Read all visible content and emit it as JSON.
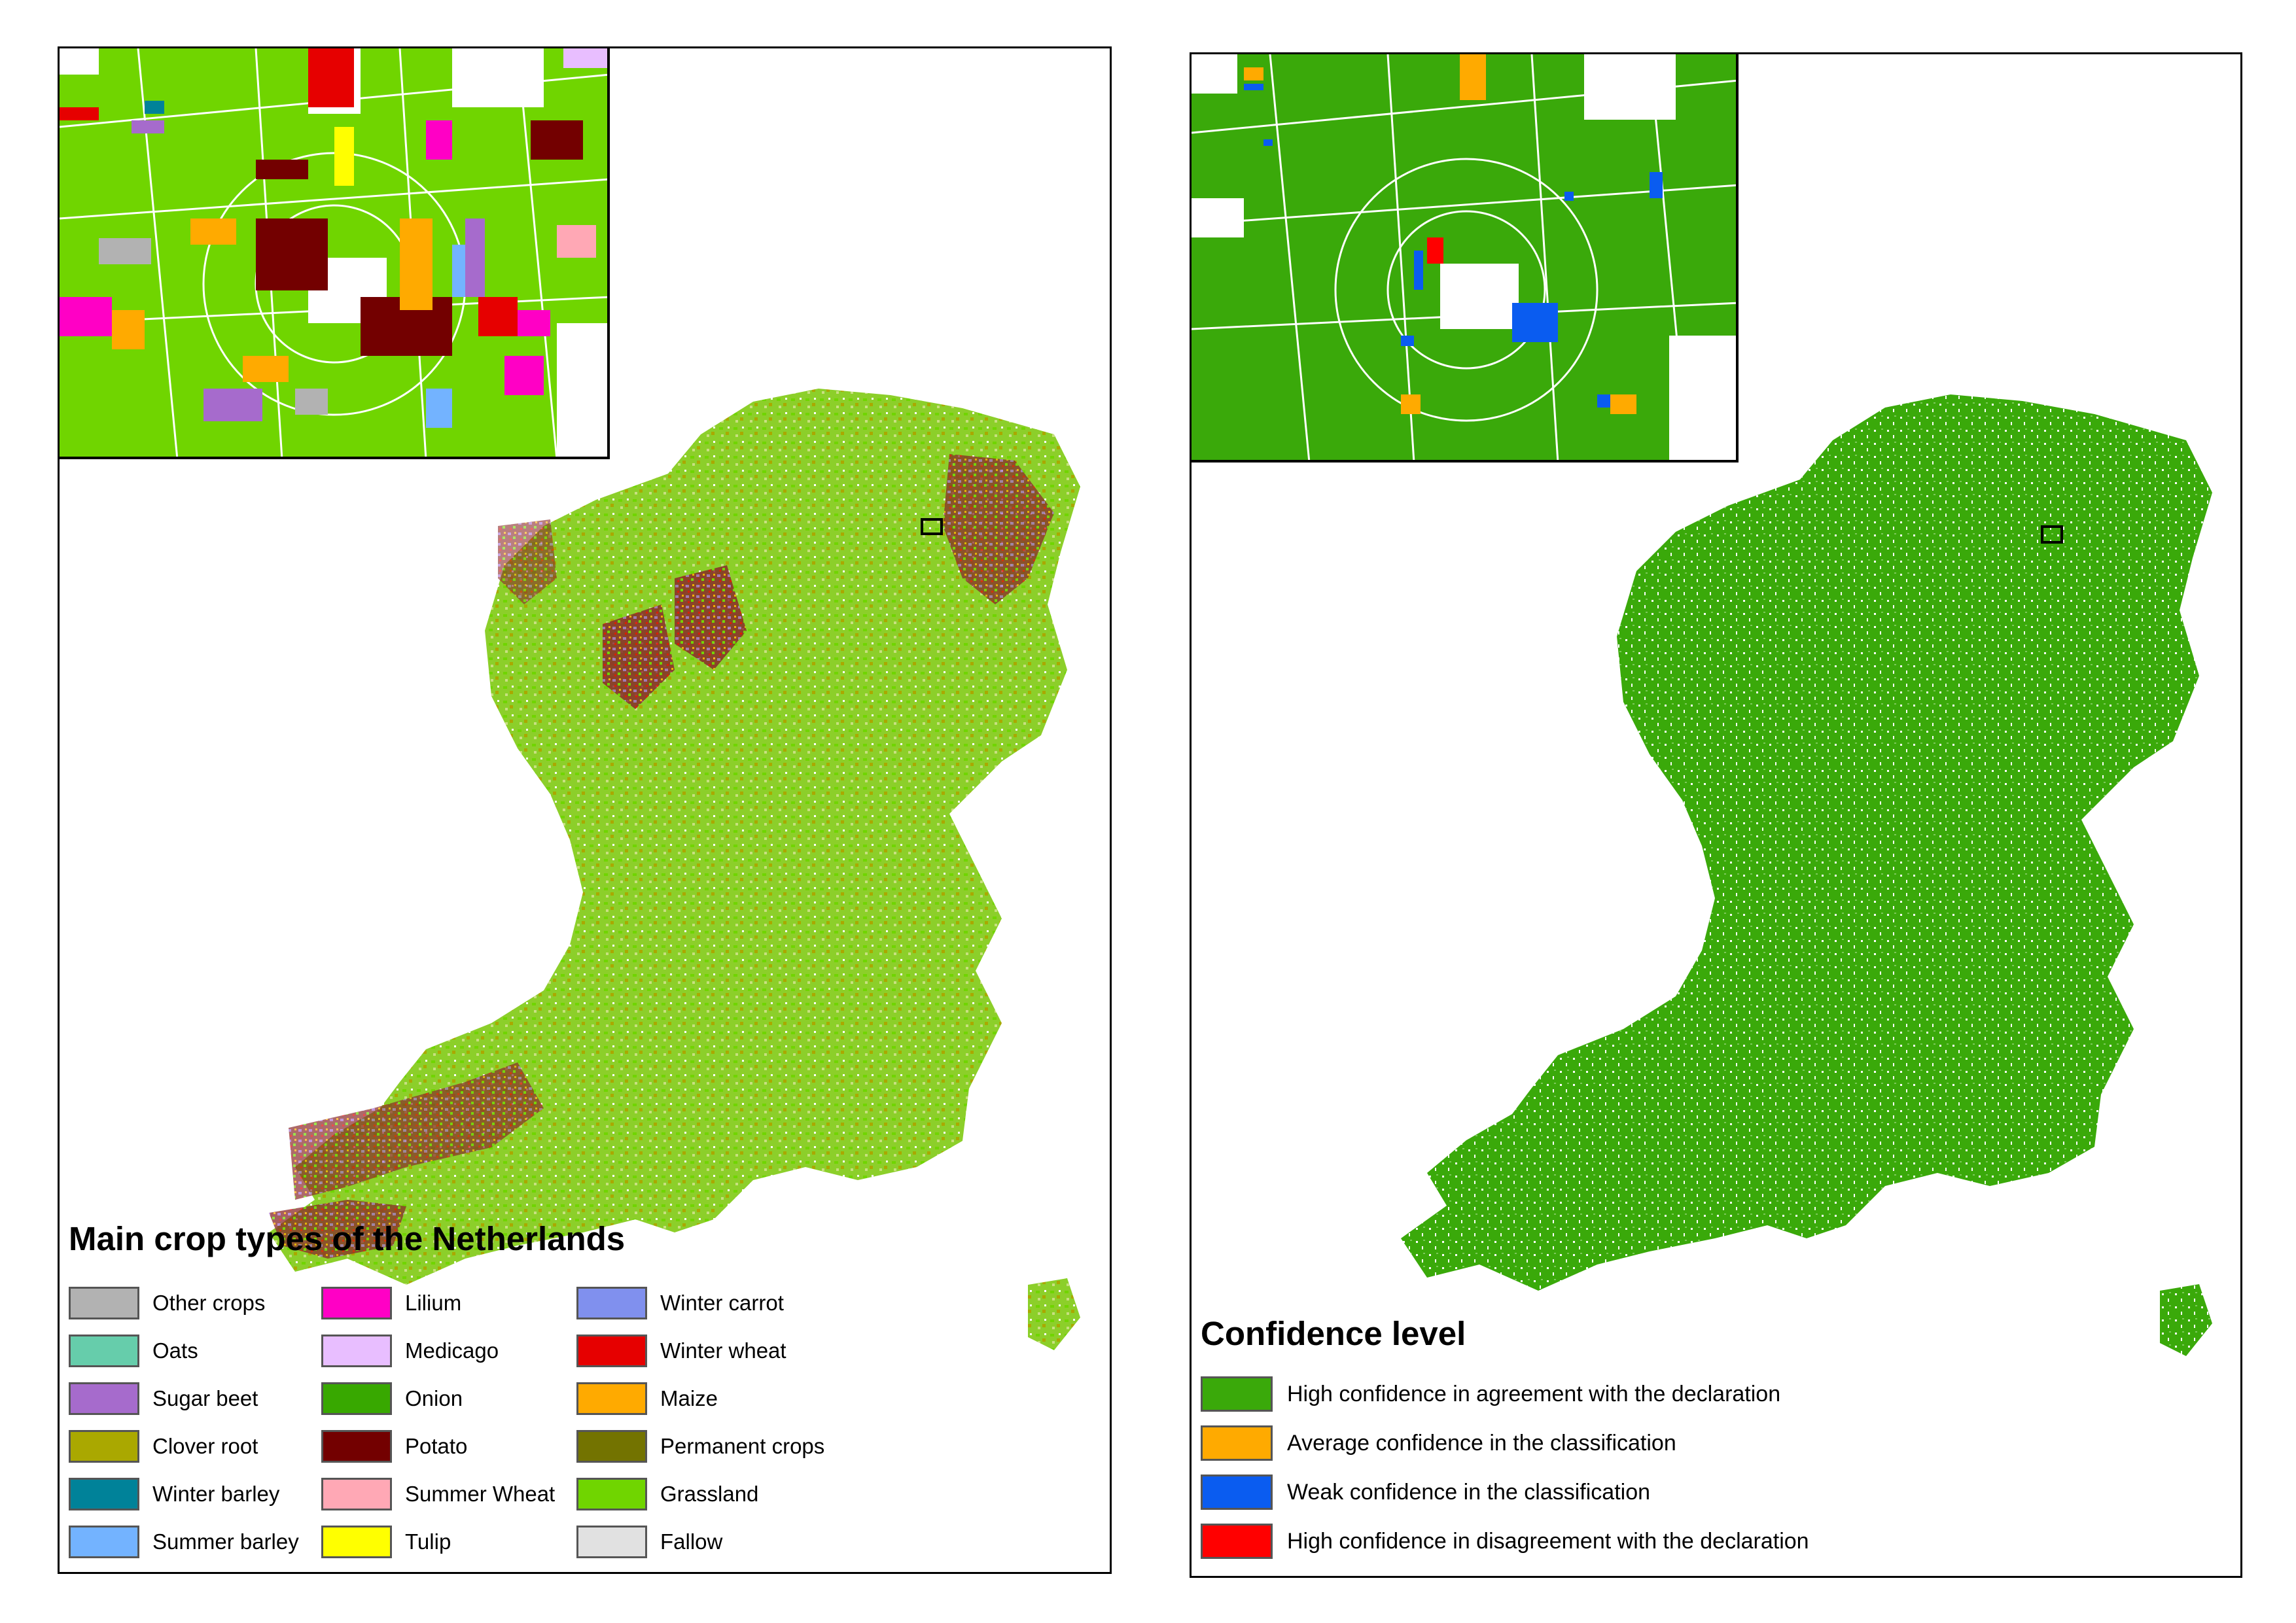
{
  "left_panel": {
    "legend_title": "Main crop types of the Netherlands",
    "legend_items": [
      {
        "label": "Other crops",
        "color": "#b2b2b2"
      },
      {
        "label": "Oats",
        "color": "#66cdab"
      },
      {
        "label": "Sugar beet",
        "color": "#a66bcc"
      },
      {
        "label": "Clover root",
        "color": "#aaa800"
      },
      {
        "label": "Winter barley",
        "color": "#008299"
      },
      {
        "label": "Summer barley",
        "color": "#73b3ff"
      },
      {
        "label": "Lilium",
        "color": "#ff00c5"
      },
      {
        "label": "Medicago",
        "color": "#e8beff"
      },
      {
        "label": "Onion",
        "color": "#38a800"
      },
      {
        "label": "Potato",
        "color": "#730000"
      },
      {
        "label": "Summer Wheat",
        "color": "#ffa8b5"
      },
      {
        "label": "Tulip",
        "color": "#ffff00"
      },
      {
        "label": "Winter carrot",
        "color": "#8090ee"
      },
      {
        "label": "Winter wheat",
        "color": "#e60000"
      },
      {
        "label": "Maize",
        "color": "#ffaa00"
      },
      {
        "label": "Permanent crops",
        "color": "#737300"
      },
      {
        "label": "Grassland",
        "color": "#70d500"
      },
      {
        "label": "Fallow",
        "color": "#e1e1e1"
      }
    ]
  },
  "right_panel": {
    "legend_title": "Confidence level",
    "legend_items": [
      {
        "label": "High confidence in agreement with the declaration",
        "color": "#3aa90a"
      },
      {
        "label": "Average confidence in the classification",
        "color": "#ffaa00"
      },
      {
        "label": "Weak confidence in the classification",
        "color": "#0a5cf0"
      },
      {
        "label": "High confidence in disagreement with the declaration",
        "color": "#ff0000"
      }
    ]
  }
}
